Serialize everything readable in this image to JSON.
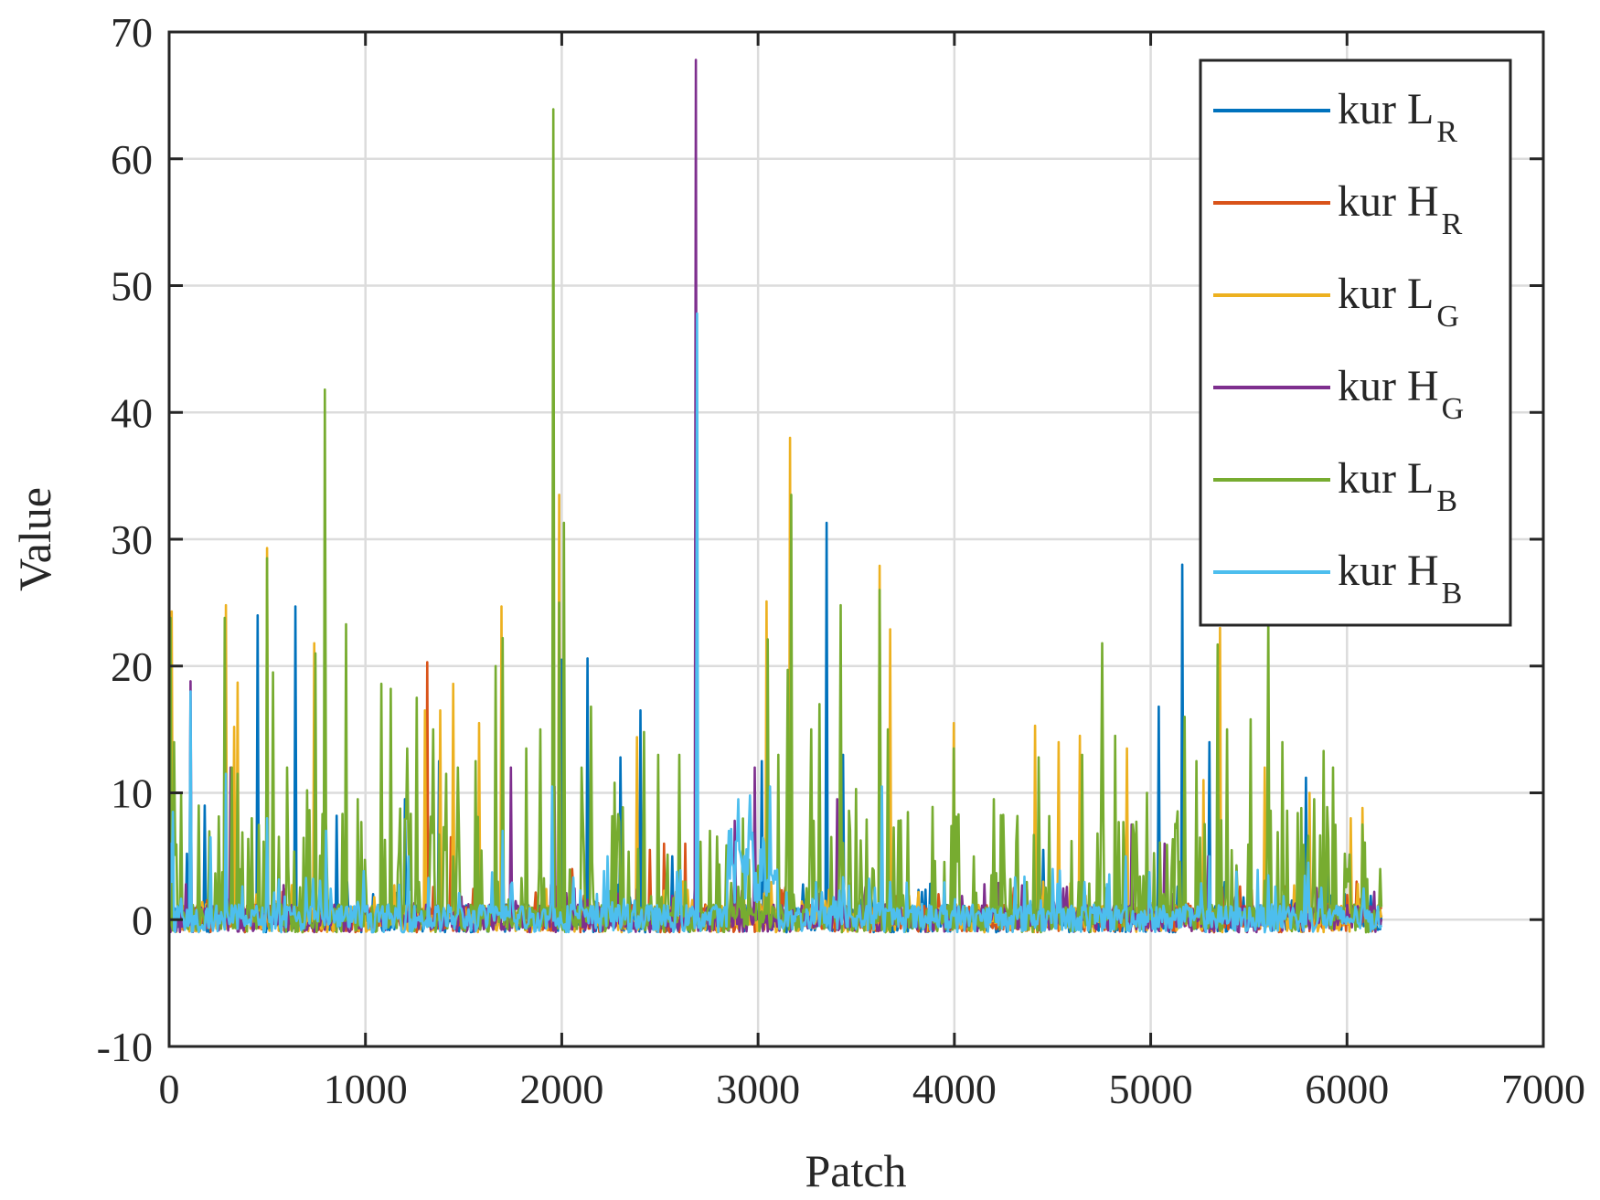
{
  "chart_data": {
    "type": "line",
    "title": "",
    "xlabel": "Patch",
    "ylabel": "Value",
    "xlim": [
      0,
      7000
    ],
    "ylim": [
      -10,
      70
    ],
    "xticks": [
      0,
      1000,
      2000,
      3000,
      4000,
      5000,
      6000,
      7000
    ],
    "yticks": [
      -10,
      0,
      10,
      20,
      30,
      40,
      50,
      60,
      70
    ],
    "grid": true,
    "legend_position": "top-right",
    "x_extent": [
      1,
      6180
    ],
    "series": [
      {
        "name": "kur L_R",
        "label": "kur L",
        "sub": "R",
        "color": "#0072BD",
        "peaks": [
          [
            5,
            25.8
          ],
          [
            8,
            16.8
          ],
          [
            90,
            5.2
          ],
          [
            180,
            9.0
          ],
          [
            450,
            24.0
          ],
          [
            640,
            24.7
          ],
          [
            850,
            8.2
          ],
          [
            1200,
            9.5
          ],
          [
            1375,
            12.5
          ],
          [
            1700,
            7.5
          ],
          [
            2000,
            20.5
          ],
          [
            2130,
            20.6
          ],
          [
            2300,
            12.8
          ],
          [
            2400,
            16.5
          ],
          [
            2560,
            5.0
          ],
          [
            3020,
            12.5
          ],
          [
            3350,
            31.3
          ],
          [
            3430,
            13.0
          ],
          [
            3620,
            10.0
          ],
          [
            4450,
            5.5
          ],
          [
            4650,
            6.8
          ],
          [
            5040,
            16.8
          ],
          [
            5160,
            28.0
          ],
          [
            5300,
            14.0
          ],
          [
            5790,
            11.2
          ],
          [
            5900,
            6.0
          ]
        ]
      },
      {
        "name": "kur H_R",
        "label": "kur H",
        "sub": "R",
        "color": "#D95319",
        "peaks": [
          [
            1315,
            20.3
          ],
          [
            1435,
            6.5
          ],
          [
            2050,
            4.0
          ],
          [
            2450,
            5.5
          ],
          [
            2520,
            6.0
          ],
          [
            2630,
            6.0
          ],
          [
            3400,
            4.2
          ],
          [
            3670,
            5.0
          ],
          [
            4300,
            2.5
          ],
          [
            5800,
            6.0
          ],
          [
            6050,
            3.0
          ]
        ]
      },
      {
        "name": "kur L_G",
        "label": "kur L",
        "sub": "G",
        "color": "#EDB120",
        "peaks": [
          [
            10,
            24.3
          ],
          [
            285,
            24.8
          ],
          [
            330,
            15.2
          ],
          [
            345,
            18.7
          ],
          [
            500,
            29.3
          ],
          [
            740,
            21.8
          ],
          [
            1300,
            16.5
          ],
          [
            1380,
            16.5
          ],
          [
            1445,
            18.6
          ],
          [
            1580,
            15.5
          ],
          [
            1690,
            24.7
          ],
          [
            1985,
            33.5
          ],
          [
            2380,
            14.4
          ],
          [
            3040,
            25.1
          ],
          [
            3160,
            38.0
          ],
          [
            3620,
            27.9
          ],
          [
            3670,
            22.9
          ],
          [
            3995,
            15.5
          ],
          [
            4410,
            15.3
          ],
          [
            4530,
            14.0
          ],
          [
            4640,
            14.5
          ],
          [
            4880,
            13.5
          ],
          [
            5270,
            11.0
          ],
          [
            5350,
            23.0
          ],
          [
            5580,
            12.0
          ],
          [
            5810,
            10.0
          ],
          [
            6020,
            8.0
          ],
          [
            6080,
            8.8
          ]
        ]
      },
      {
        "name": "kur H_G",
        "label": "kur H",
        "sub": "G",
        "color": "#7E2F8E",
        "peaks": [
          [
            105,
            18.8
          ],
          [
            310,
            12.0
          ],
          [
            1740,
            12.0
          ],
          [
            1960,
            10.5
          ],
          [
            2680,
            67.8
          ],
          [
            2880,
            7.8
          ],
          [
            2980,
            12.0
          ],
          [
            3400,
            9.5
          ],
          [
            4900,
            7.5
          ],
          [
            5070,
            6.0
          ],
          [
            5290,
            5.0
          ]
        ]
      },
      {
        "name": "kur L_B",
        "label": "kur L",
        "sub": "B",
        "color": "#77AC30",
        "peaks": [
          [
            5,
            23.8
          ],
          [
            25,
            14.0
          ],
          [
            60,
            10.0
          ],
          [
            150,
            9.0
          ],
          [
            280,
            23.8
          ],
          [
            320,
            12.0
          ],
          [
            350,
            11.5
          ],
          [
            420,
            8.0
          ],
          [
            500,
            28.5
          ],
          [
            530,
            19.5
          ],
          [
            600,
            12.0
          ],
          [
            700,
            10.2
          ],
          [
            745,
            21.0
          ],
          [
            790,
            41.8
          ],
          [
            900,
            23.3
          ],
          [
            960,
            9.5
          ],
          [
            1080,
            18.6
          ],
          [
            1130,
            18.2
          ],
          [
            1210,
            13.5
          ],
          [
            1260,
            17.5
          ],
          [
            1345,
            15.0
          ],
          [
            1410,
            11.5
          ],
          [
            1470,
            12.0
          ],
          [
            1560,
            12.5
          ],
          [
            1660,
            20.0
          ],
          [
            1700,
            22.2
          ],
          [
            1820,
            13.5
          ],
          [
            1890,
            15.0
          ],
          [
            1955,
            63.9
          ],
          [
            1985,
            25.0
          ],
          [
            2010,
            31.3
          ],
          [
            2100,
            12.0
          ],
          [
            2150,
            16.8
          ],
          [
            2270,
            10.8
          ],
          [
            2420,
            14.8
          ],
          [
            2490,
            13.0
          ],
          [
            2600,
            13.0
          ],
          [
            3050,
            22.1
          ],
          [
            3100,
            13.0
          ],
          [
            3150,
            19.7
          ],
          [
            3165,
            33.5
          ],
          [
            3270,
            15.0
          ],
          [
            3310,
            17.0
          ],
          [
            3420,
            24.8
          ],
          [
            3500,
            10.3
          ],
          [
            3620,
            26.0
          ],
          [
            3660,
            15.0
          ],
          [
            3995,
            13.5
          ],
          [
            4200,
            9.5
          ],
          [
            4430,
            12.8
          ],
          [
            4650,
            13.0
          ],
          [
            4750,
            21.8
          ],
          [
            4820,
            14.5
          ],
          [
            4980,
            10.0
          ],
          [
            5170,
            16.0
          ],
          [
            5230,
            12.5
          ],
          [
            5340,
            21.7
          ],
          [
            5390,
            15.0
          ],
          [
            5510,
            15.8
          ],
          [
            5600,
            24.0
          ],
          [
            5670,
            14.0
          ],
          [
            5830,
            9.5
          ],
          [
            5880,
            13.3
          ],
          [
            5930,
            12.0
          ],
          [
            6080,
            7.5
          ]
        ]
      },
      {
        "name": "kur H_B",
        "label": "kur H",
        "sub": "B",
        "color": "#4DBEEE",
        "peaks": [
          [
            5,
            6.0
          ],
          [
            20,
            8.5
          ],
          [
            110,
            18.0
          ],
          [
            210,
            6.5
          ],
          [
            285,
            11.5
          ],
          [
            500,
            8.0
          ],
          [
            800,
            7.0
          ],
          [
            1220,
            5.0
          ],
          [
            1700,
            7.0
          ],
          [
            1950,
            10.5
          ],
          [
            2230,
            5.0
          ],
          [
            2690,
            47.8
          ],
          [
            2900,
            9.5
          ],
          [
            2960,
            9.8
          ],
          [
            3060,
            10.5
          ],
          [
            3630,
            10.5
          ],
          [
            4500,
            4.0
          ],
          [
            4870,
            5.0
          ],
          [
            5300,
            5.0
          ],
          [
            5600,
            3.5
          ],
          [
            5800,
            4.5
          ]
        ]
      }
    ]
  }
}
